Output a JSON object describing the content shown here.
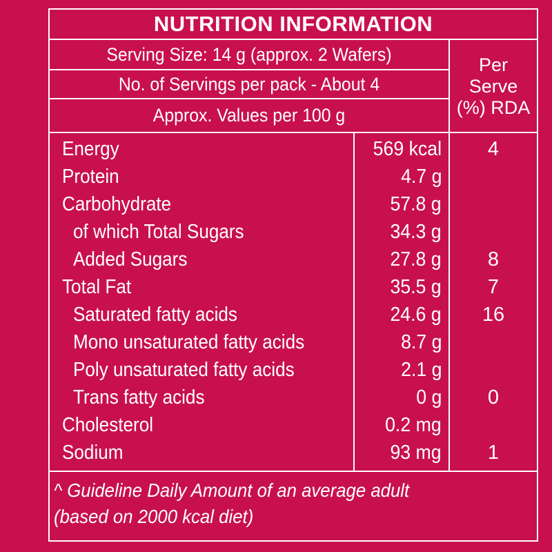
{
  "title": "NUTRITION INFORMATION",
  "header": {
    "serving_size": "Serving Size: 14 g (approx. 2 Wafers)",
    "servings_per_pack": "No. of Servings per pack - About 4",
    "values_basis": "Approx. Values per 100 g",
    "per_serve_line1": "Per",
    "per_serve_line2": "Serve",
    "per_serve_line3": "(%) RDA"
  },
  "nutrients": [
    {
      "name": "Energy",
      "value": "569 kcal",
      "rda": "4",
      "indent": false
    },
    {
      "name": "Protein",
      "value": "4.7 g",
      "rda": "",
      "indent": false
    },
    {
      "name": "Carbohydrate",
      "value": "57.8 g",
      "rda": "",
      "indent": false
    },
    {
      "name": "of which Total Sugars",
      "value": "34.3 g",
      "rda": "",
      "indent": true
    },
    {
      "name": "Added Sugars",
      "value": "27.8 g",
      "rda": "8",
      "indent": true
    },
    {
      "name": "Total Fat",
      "value": "35.5 g",
      "rda": "7",
      "indent": false
    },
    {
      "name": "Saturated fatty acids",
      "value": "24.6 g",
      "rda": "16",
      "indent": true
    },
    {
      "name": "Mono unsaturated fatty acids",
      "value": "8.7 g",
      "rda": "",
      "indent": true
    },
    {
      "name": "Poly unsaturated fatty acids",
      "value": "2.1 g",
      "rda": "",
      "indent": true
    },
    {
      "name": "Trans fatty acids",
      "value": "0 g",
      "rda": "0",
      "indent": true
    },
    {
      "name": "Cholesterol",
      "value": "0.2 mg",
      "rda": "",
      "indent": false
    },
    {
      "name": "Sodium",
      "value": "93 mg",
      "rda": "1",
      "indent": false
    }
  ],
  "footnote": {
    "line1": "^ Guideline Daily Amount of an average adult",
    "line2": "(based on 2000 kcal diet)"
  },
  "colors": {
    "background": "#c8104e",
    "text": "#ffffff"
  }
}
